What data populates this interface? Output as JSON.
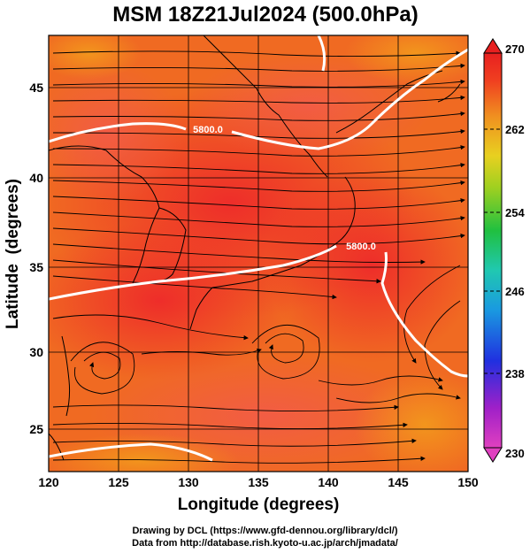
{
  "figure": {
    "title": "MSM 18Z21Jul2024 (500.0hPa)",
    "xlabel": "Longitude (degrees)",
    "ylabel": "Latitude  (degrees)",
    "x_ticks": [
      "120",
      "125",
      "130",
      "135",
      "140",
      "145",
      "150"
    ],
    "y_ticks": [
      "25",
      "30",
      "35",
      "40",
      "45"
    ],
    "contour_labels": [
      "5800.0",
      "5800.0"
    ]
  },
  "colorbar": {
    "ticks": [
      "270",
      "262",
      "254",
      "246",
      "238",
      "230"
    ],
    "range": [
      230,
      270
    ],
    "colors": [
      "#e040c0",
      "#8a20c0",
      "#2030e0",
      "#1a9ae0",
      "#20c8b0",
      "#20c040",
      "#a0d020",
      "#e8d020",
      "#f09020",
      "#f04020",
      "#e82020"
    ]
  },
  "credits": {
    "line1": "Drawing by DCL (https://www.gfd-dennou.org/library/dcl/)",
    "line2": "Data from http://database.rish.kyoto-u.ac.jp/arch/jmadata/"
  },
  "chart_data": {
    "type": "heatmap",
    "title": "MSM 18Z21Jul2024 (500.0hPa)",
    "xlabel": "Longitude (degrees)",
    "ylabel": "Latitude  (degrees)",
    "xlim": [
      120,
      150
    ],
    "ylim": [
      22.4,
      47.6
    ],
    "x_ticks": [
      120,
      125,
      130,
      135,
      140,
      145,
      150
    ],
    "y_ticks": [
      25,
      30,
      35,
      40,
      45
    ],
    "colorbar": {
      "min": 230,
      "max": 270,
      "ticks": [
        270,
        262,
        254,
        246,
        238,
        230
      ]
    },
    "field_range_estimate": [
      264,
      270
    ],
    "contours": [
      {
        "label": "5800.0",
        "lat_near": 42.5,
        "description": "northern 5800 m geopotential height contour"
      },
      {
        "label": "5800.0",
        "lat_near": 35,
        "description": "southern 5800 m geopotential height contour"
      }
    ],
    "overlay": "wind streamlines"
  }
}
